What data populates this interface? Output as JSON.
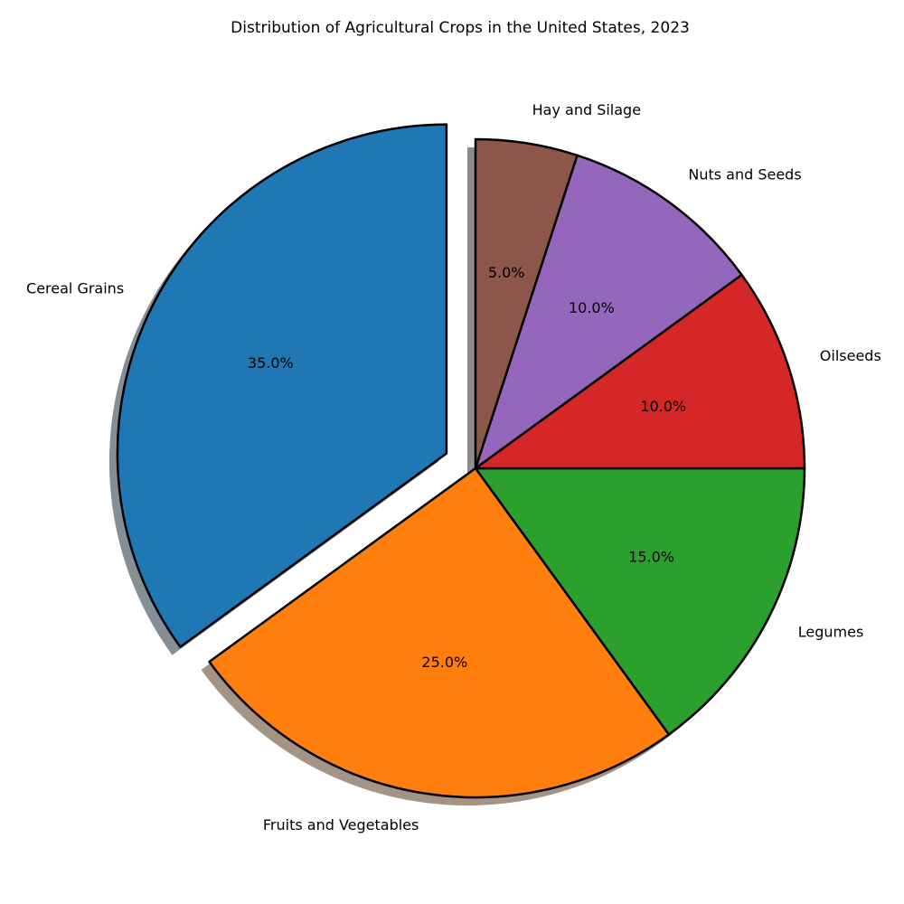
{
  "chart_data": {
    "type": "pie",
    "title": "Distribution of Agricultural Crops in the United States, 2023",
    "slices": [
      {
        "label": "Cereal Grains",
        "value": 35.0,
        "pct_label": "35.0%",
        "color": "#1f77b4",
        "exploded": true
      },
      {
        "label": "Fruits and Vegetables",
        "value": 25.0,
        "pct_label": "25.0%",
        "color": "#ff7f0e",
        "exploded": false
      },
      {
        "label": "Legumes",
        "value": 15.0,
        "pct_label": "15.0%",
        "color": "#2ca02c",
        "exploded": false
      },
      {
        "label": "Oilseeds",
        "value": 10.0,
        "pct_label": "10.0%",
        "color": "#d62728",
        "exploded": false
      },
      {
        "label": "Nuts and Seeds",
        "value": 10.0,
        "pct_label": "10.0%",
        "color": "#9467bd",
        "exploded": false
      },
      {
        "label": "Hay and Silage",
        "value": 5.0,
        "pct_label": "5.0%",
        "color": "#8c564b",
        "exploded": false
      }
    ],
    "start_angle_deg": 90,
    "direction": "counterclockwise",
    "shadow": true,
    "edge_color": "#000000"
  }
}
